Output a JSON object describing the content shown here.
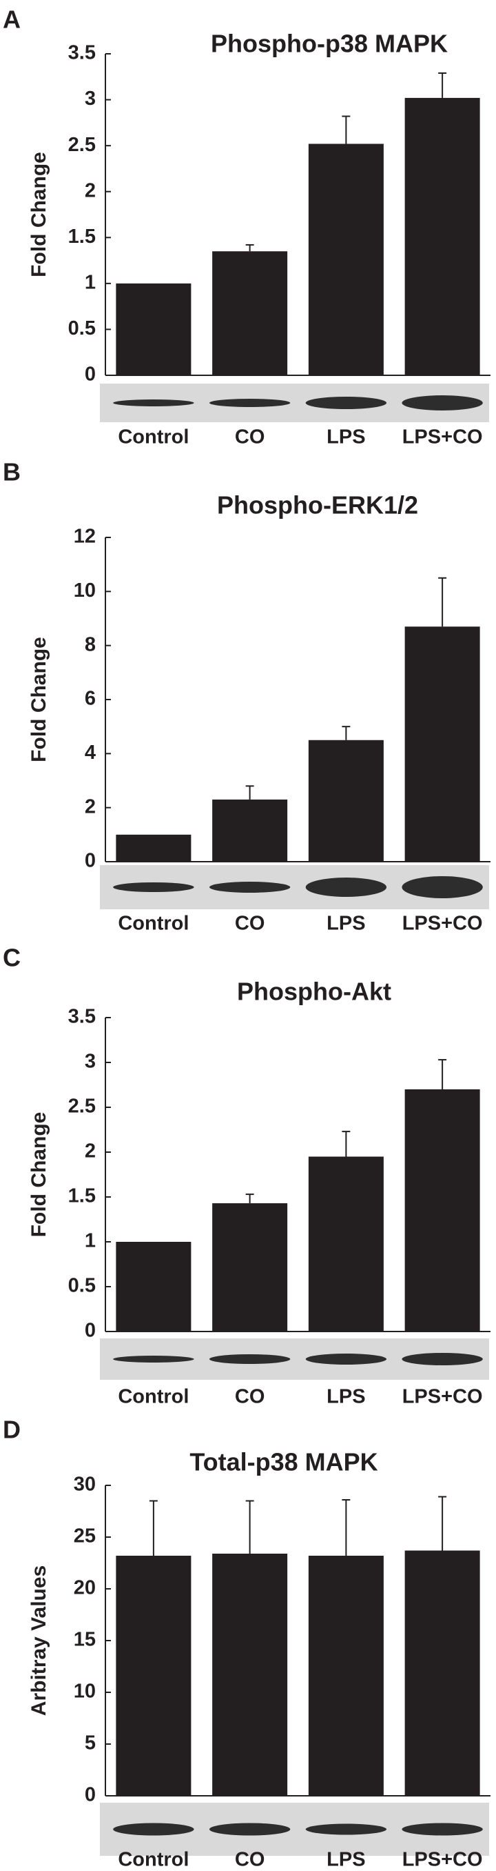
{
  "chart_data": [
    {
      "type": "bar",
      "panel": "A",
      "title": "Phospho-p38 MAPK",
      "ylabel": "Fold Change",
      "categories": [
        "Control",
        "CO",
        "LPS",
        "LPS+CO"
      ],
      "values": [
        1.0,
        1.35,
        2.52,
        3.02
      ],
      "errors": [
        null,
        0.07,
        0.3,
        0.27
      ],
      "color": "#231f20",
      "ylim": [
        0,
        3.5
      ],
      "yticks": [
        0,
        0.5,
        1,
        1.5,
        2,
        2.5,
        3,
        3.5
      ]
    },
    {
      "type": "bar",
      "panel": "B",
      "title": "Phospho-ERK1/2",
      "ylabel": "Fold Change",
      "categories": [
        "Control",
        "CO",
        "LPS",
        "LPS+CO"
      ],
      "values": [
        1.0,
        2.3,
        4.5,
        8.7
      ],
      "errors": [
        null,
        0.5,
        0.5,
        1.8
      ],
      "color": "#231f20",
      "ylim": [
        0,
        12
      ],
      "yticks": [
        0,
        2,
        4,
        6,
        8,
        10,
        12
      ]
    },
    {
      "type": "bar",
      "panel": "C",
      "title": "Phospho-Akt",
      "ylabel": "Fold Change",
      "categories": [
        "Control",
        "CO",
        "LPS",
        "LPS+CO"
      ],
      "values": [
        1.0,
        1.43,
        1.95,
        2.7
      ],
      "errors": [
        null,
        0.1,
        0.28,
        0.33
      ],
      "color": "#231f20",
      "ylim": [
        0,
        3.5
      ],
      "yticks": [
        0,
        0.5,
        1,
        1.5,
        2,
        2.5,
        3,
        3.5
      ]
    },
    {
      "type": "bar",
      "panel": "D",
      "title": "Total-p38 MAPK",
      "ylabel": "Arbitray Values",
      "categories": [
        "Control",
        "CO",
        "LPS",
        "LPS+CO"
      ],
      "values": [
        23.2,
        23.4,
        23.2,
        23.7
      ],
      "errors": [
        5.3,
        5.1,
        5.4,
        5.2
      ],
      "color": "#231f20",
      "ylim": [
        0,
        30
      ],
      "yticks": [
        0,
        5,
        10,
        15,
        20,
        25,
        30
      ]
    }
  ]
}
